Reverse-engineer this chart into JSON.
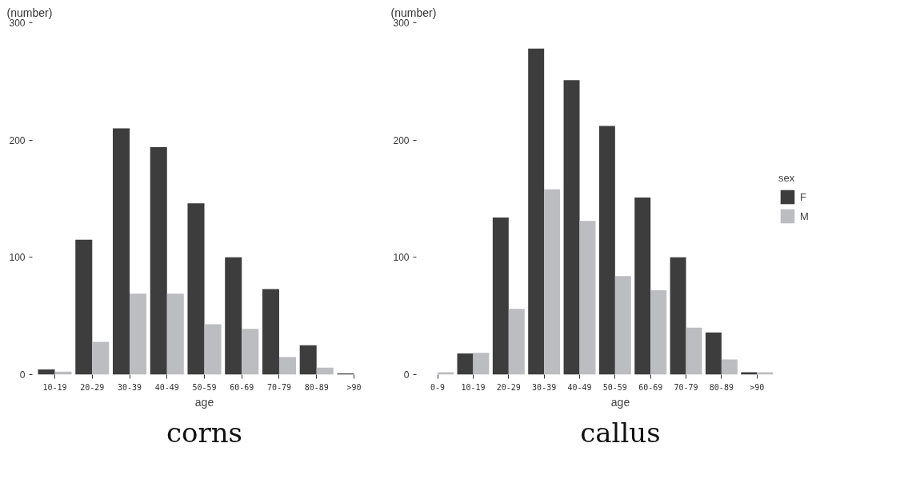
{
  "chart_data": [
    {
      "type": "bar",
      "title": "corns",
      "xlabel": "age",
      "ylabel": "(number)",
      "categories": [
        "10-19",
        "20-29",
        "30-39",
        "40-49",
        "50-59",
        "60-69",
        "70-79",
        "80-89",
        ">90"
      ],
      "series": [
        {
          "color": "#3d3d3d",
          "values": [
            4.5,
            115,
            210,
            194,
            146,
            100,
            73,
            25,
            1
          ]
        },
        {
          "color": "#bcbdc0",
          "values": [
            2.5,
            28,
            69,
            69,
            43,
            39,
            15,
            6,
            null
          ]
        }
      ],
      "ylim": [
        0,
        300
      ],
      "yticks": [
        0,
        100,
        200,
        300
      ],
      "grid": false
    },
    {
      "type": "bar",
      "title": "callus",
      "xlabel": "age",
      "ylabel": "(number)",
      "legend_title": "sex",
      "categories": [
        "0-9",
        "10-19",
        "20-29",
        "30-39",
        "40-49",
        "50-59",
        "60-69",
        "70-79",
        "80-89",
        ">90"
      ],
      "series": [
        {
          "name": "F",
          "color": "#3d3d3d",
          "values": [
            null,
            18,
            134,
            278,
            251,
            212,
            151,
            100,
            36,
            2
          ]
        },
        {
          "name": "M",
          "color": "#bcbdc0",
          "values": [
            2,
            18.5,
            56,
            158,
            131,
            84,
            72,
            40,
            13,
            2
          ]
        }
      ],
      "ylim": [
        0,
        300
      ],
      "yticks": [
        0,
        100,
        200,
        300
      ],
      "grid": false,
      "legend": "right"
    }
  ]
}
